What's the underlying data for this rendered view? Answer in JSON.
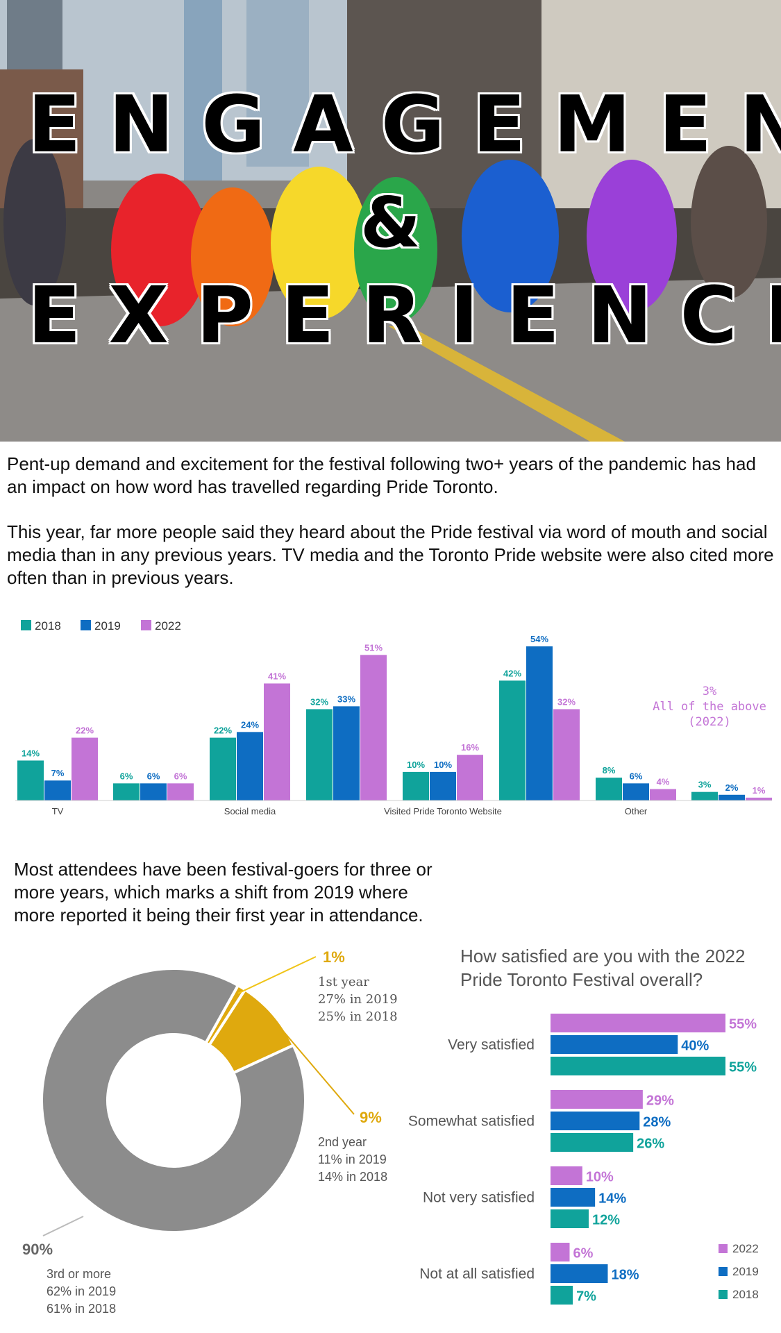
{
  "hero": {
    "title_line1": "ENGAGEMENT",
    "ampersand": "&",
    "title_line2": "EXPERIENCE"
  },
  "intro": {
    "p1": "Pent-up demand and excitement for the festival following two+ years of the pandemic has had an impact on how word has travelled regarding Pride Toronto.",
    "p2": "This year, far more people said they heard about the Pride festival via word of mouth and social media than in any previous years. TV media and the Toronto Pride website were also cited more often than in previous years."
  },
  "colors": {
    "y2018": "#10a39b",
    "y2019": "#0e6dc2",
    "y2022": "#c374d6",
    "gold": "#dfa90e",
    "grey": "#8c8c8c"
  },
  "chart_data": [
    {
      "type": "bar",
      "legend": [
        "2018",
        "2019",
        "2022"
      ],
      "categories": [
        "TV",
        "",
        "Social media",
        "",
        "Visited Pride Toronto Website",
        "",
        "Other",
        ""
      ],
      "series": [
        {
          "name": "2018",
          "values": [
            14,
            6,
            22,
            32,
            10,
            42,
            8,
            3
          ],
          "labels": [
            "14%",
            "6%",
            "22%",
            "32%",
            "10%",
            "42%",
            "8%",
            "3%"
          ]
        },
        {
          "name": "2019",
          "values": [
            7,
            6,
            24,
            33,
            10,
            54,
            6,
            2
          ],
          "labels": [
            "7%",
            "6%",
            "24%",
            "33%",
            "10%",
            "54%",
            "6%",
            "2%"
          ]
        },
        {
          "name": "2022",
          "values": [
            22,
            6,
            41,
            51,
            16,
            32,
            4,
            1
          ],
          "labels": [
            "22%",
            "6%",
            "41%",
            "51%",
            "16%",
            "32%",
            "4%",
            "1%"
          ]
        }
      ],
      "annotation": {
        "value": "3%",
        "line1": "All of the above",
        "line2": "(2022)"
      },
      "ylim": [
        0,
        54
      ]
    },
    {
      "type": "pie",
      "intro": "Most attendees have been festival-goers for three or more years, which marks a shift from 2019 where more reported it being their first year in attendance.",
      "slices": [
        {
          "value": 1,
          "label": "1%",
          "name": "1st year",
          "detail1": "27% in 2019",
          "detail2": "25% in 2018"
        },
        {
          "value": 9,
          "label": "9%",
          "name": "2nd year",
          "detail1": "11% in 2019",
          "detail2": "14% in 2018"
        },
        {
          "value": 90,
          "label": "90%",
          "name": "3rd or more",
          "detail1": "62% in 2019",
          "detail2": "61% in 2018"
        }
      ]
    },
    {
      "type": "bar",
      "title": "How satisfied are you with the 2022 Pride Toronto Festival overall?",
      "categories": [
        "Very satisfied",
        "Somewhat satisfied",
        "Not very satisfied",
        "Not at all satisfied"
      ],
      "series": [
        {
          "name": "2022",
          "values": [
            55,
            29,
            10,
            6
          ],
          "labels": [
            "55%",
            "29%",
            "10%",
            "6%"
          ]
        },
        {
          "name": "2019",
          "values": [
            40,
            28,
            14,
            18
          ],
          "labels": [
            "40%",
            "28%",
            "14%",
            "18%"
          ]
        },
        {
          "name": "2018",
          "values": [
            55,
            26,
            12,
            7
          ],
          "labels": [
            "55%",
            "26%",
            "12%",
            "7%"
          ]
        }
      ],
      "legend": [
        "2022",
        "2019",
        "2018"
      ],
      "xlim": [
        0,
        55
      ]
    }
  ]
}
